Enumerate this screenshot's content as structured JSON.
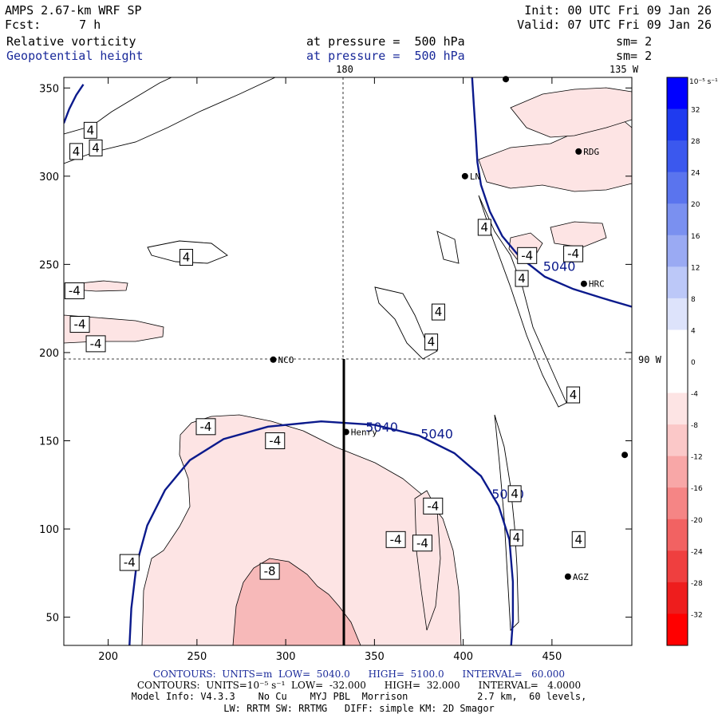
{
  "header": {
    "model": "AMPS 2.67-km WRF SP",
    "forecast_label": "Fcst:",
    "forecast_value": "7 h",
    "init": "Init: 00 UTC Fri 09 Jan 26",
    "valid": "Valid: 07 UTC Fri 09 Jan 26",
    "field1_name": "Relative vorticity",
    "field1_level": "at pressure =  500 hPa",
    "field1_sm": "sm= 2",
    "field2_name": "Geopotential height",
    "field2_level": "at pressure =  500 hPa",
    "field2_sm": "sm= 2"
  },
  "map_labels": {
    "lon_180": "180",
    "lon_135": "135 W",
    "lat_90": "90 W"
  },
  "colors": {
    "geopotential_contour": "#0b1a8c",
    "vorticity_contour": "#000000",
    "neg_fill_light": "#fde4e4",
    "neg_fill_mid": "#f7b9b9",
    "header_blue": "#1a2a9a"
  },
  "chart_data": {
    "type": "contour",
    "xlabel": "",
    "ylabel": "",
    "xlim": [
      175,
      495
    ],
    "ylim": [
      34,
      356
    ],
    "xticks": [
      200,
      250,
      300,
      350,
      400,
      450
    ],
    "yticks": [
      50,
      100,
      150,
      200,
      250,
      300,
      350
    ],
    "geopotential_contours": [
      {
        "level": 5040,
        "label": "5040",
        "points": [
          [
            175,
            330
          ],
          [
            178,
            338
          ],
          [
            182,
            346
          ],
          [
            186,
            352
          ]
        ]
      },
      {
        "level": 5040,
        "label": "5040",
        "points": [
          [
            212,
            34
          ],
          [
            213,
            55
          ],
          [
            216,
            80
          ],
          [
            222,
            102
          ],
          [
            232,
            122
          ],
          [
            246,
            139
          ],
          [
            265,
            151
          ],
          [
            290,
            158
          ],
          [
            320,
            161
          ],
          [
            350,
            159
          ],
          [
            375,
            153
          ],
          [
            395,
            143
          ],
          [
            410,
            130
          ],
          [
            420,
            113
          ],
          [
            426,
            94
          ],
          [
            428,
            70
          ],
          [
            428,
            48
          ],
          [
            427,
            34
          ]
        ]
      },
      {
        "level": 5040,
        "label": "5040",
        "points": [
          [
            405,
            356
          ],
          [
            406,
            340
          ],
          [
            407,
            325
          ],
          [
            408,
            308
          ],
          [
            410,
            295
          ],
          [
            415,
            280
          ],
          [
            422,
            266
          ],
          [
            432,
            254
          ],
          [
            446,
            243
          ],
          [
            462,
            236
          ],
          [
            478,
            231
          ],
          [
            495,
            226
          ]
        ]
      }
    ],
    "geopotential_labels": [
      {
        "text": "5040",
        "x": 345,
        "y": 158
      },
      {
        "text": "5040",
        "x": 376,
        "y": 154
      },
      {
        "text": "5040",
        "x": 416,
        "y": 120
      },
      {
        "text": "5040",
        "x": 445,
        "y": 249
      }
    ],
    "vorticity_labels": [
      {
        "text": "4",
        "x": 190,
        "y": 326
      },
      {
        "text": "4",
        "x": 182,
        "y": 314
      },
      {
        "text": "4",
        "x": 193,
        "y": 316
      },
      {
        "text": "4",
        "x": 244,
        "y": 254
      },
      {
        "text": "-4",
        "x": 181,
        "y": 235
      },
      {
        "text": "-4",
        "x": 184,
        "y": 216
      },
      {
        "text": "-4",
        "x": 193,
        "y": 205
      },
      {
        "text": "4",
        "x": 412,
        "y": 271
      },
      {
        "text": "-4",
        "x": 436,
        "y": 255
      },
      {
        "text": "-4",
        "x": 462,
        "y": 256
      },
      {
        "text": "4",
        "x": 433,
        "y": 242
      },
      {
        "text": "4",
        "x": 386,
        "y": 223
      },
      {
        "text": "4",
        "x": 382,
        "y": 206
      },
      {
        "text": "4",
        "x": 462,
        "y": 176
      },
      {
        "text": "-4",
        "x": 255,
        "y": 158
      },
      {
        "text": "-4",
        "x": 294,
        "y": 150
      },
      {
        "text": "-4",
        "x": 383,
        "y": 113
      },
      {
        "text": "4",
        "x": 429,
        "y": 120
      },
      {
        "text": "-4",
        "x": 362,
        "y": 94
      },
      {
        "text": "-4",
        "x": 377,
        "y": 92
      },
      {
        "text": "4",
        "x": 430,
        "y": 95
      },
      {
        "text": "4",
        "x": 465,
        "y": 94
      },
      {
        "text": "-4",
        "x": 212,
        "y": 81
      },
      {
        "text": "-8",
        "x": 291,
        "y": 76
      }
    ],
    "stations": [
      {
        "name": "NCO",
        "x": 293,
        "y": 196
      },
      {
        "name": "Henry",
        "x": 334,
        "y": 155
      },
      {
        "name": "AGZ",
        "x": 459,
        "y": 73
      },
      {
        "name": "HRC",
        "x": 468,
        "y": 239
      },
      {
        "name": "RDG",
        "x": 465,
        "y": 314
      },
      {
        "name": "LN",
        "x": 401,
        "y": 300
      },
      {
        "name": "",
        "x": 491,
        "y": 142
      },
      {
        "name": "",
        "x": 424,
        "y": 355
      }
    ],
    "reference_lines": [
      {
        "type": "vertical_dashed",
        "x": 333
      },
      {
        "type": "horizontal_dashed",
        "y": 196
      },
      {
        "type": "vertical_solid",
        "x": 333,
        "y0": 34,
        "y1": 196
      }
    ]
  },
  "colorbar": {
    "unit_label": "10⁻⁵ s⁻¹",
    "ticks": [
      "32",
      "28",
      "24",
      "20",
      "16",
      "12",
      "8",
      "4",
      "0",
      "-4",
      "-8",
      "-12",
      "-16",
      "-20",
      "-24",
      "-28",
      "-32"
    ],
    "colors": [
      "#0000ff",
      "#1f3bef",
      "#3b58ee",
      "#5a74ee",
      "#7a90f0",
      "#9aaaf3",
      "#bcc8f8",
      "#dde3fb",
      "#ffffff",
      "#ffffff",
      "#fde4e4",
      "#fbc8c8",
      "#f8a7a7",
      "#f58585",
      "#f26262",
      "#ef3f3f",
      "#ee1d1d",
      "#ff0000"
    ]
  },
  "footer": {
    "line1_prefix": "CONTOURS:  UNITS=m  LOW=  5040.0",
    "line1_high": "HIGH=  5100.0",
    "line1_interval": "INTERVAL=   60.000",
    "line2_prefix": "CONTOURS:  UNITS=10⁻⁵ s⁻¹  LOW=  -32.000",
    "line2_high": "HIGH=  32.000",
    "line2_interval": "INTERVAL=   4.0000",
    "line3": "Model Info: V4.3.3    No Cu    MYJ PBL  Morrison            2.7 km,  60 levels,",
    "line4": "LW: RRTM SW: RRTMG   DIFF: simple KM: 2D Smagor"
  }
}
